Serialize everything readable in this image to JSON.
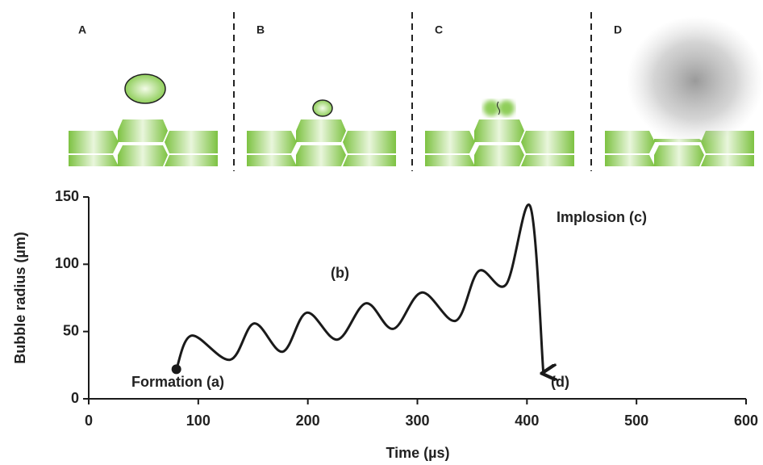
{
  "panels": [
    "A",
    "B",
    "C",
    "D"
  ],
  "chart_data": {
    "type": "line",
    "x_label": "Time (µs)",
    "y_label": "Bubble radius (µm)",
    "x": [
      80,
      94,
      129,
      151,
      177,
      199,
      227,
      253,
      278,
      304,
      335,
      356,
      381,
      403,
      415
    ],
    "series": [
      {
        "color": "#1a1a1a",
        "values": [
          22,
          47,
          29,
          56,
          35,
          64,
          44,
          71,
          52,
          79,
          58,
          95,
          85,
          143,
          19
        ]
      }
    ],
    "annotations": [
      "Formation (a)",
      "(b)",
      "Implosion (c)",
      "(d)"
    ],
    "xlim": [
      0,
      600
    ],
    "xticks": [
      0,
      100,
      200,
      300,
      400,
      500,
      600
    ],
    "ylim": [
      0,
      150
    ],
    "yticks": [
      0,
      50,
      100,
      150
    ]
  }
}
